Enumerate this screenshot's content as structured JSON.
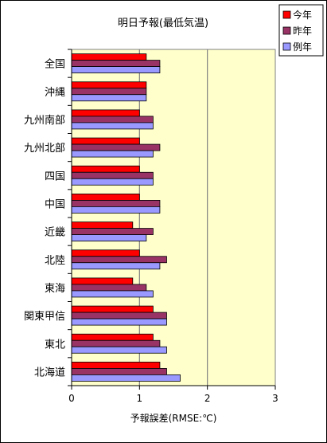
{
  "chart_data": {
    "type": "bar",
    "orientation": "horizontal",
    "title": "明日予報(最低気温)",
    "xlabel": "予報誤差(RMSE:℃)",
    "ylabel": "",
    "xlim": [
      0,
      3
    ],
    "xticks": [
      "0",
      "1",
      "2",
      "3"
    ],
    "grid": "vertical major lines",
    "legend_position": "top-right",
    "plot_background": "#FFFFCC",
    "categories": [
      "全国",
      "沖縄",
      "九州南部",
      "九州北部",
      "四国",
      "中国",
      "近畿",
      "北陸",
      "東海",
      "関東甲信",
      "東北",
      "北海道"
    ],
    "series": [
      {
        "name": "今年",
        "color": "#FF0000",
        "values": [
          1.1,
          1.1,
          1.0,
          1.0,
          1.0,
          1.0,
          0.9,
          1.0,
          0.9,
          1.2,
          1.2,
          1.3
        ]
      },
      {
        "name": "昨年",
        "color": "#993366",
        "values": [
          1.3,
          1.1,
          1.2,
          1.3,
          1.2,
          1.3,
          1.2,
          1.4,
          1.1,
          1.4,
          1.3,
          1.4
        ]
      },
      {
        "name": "例年",
        "color": "#9999FF",
        "values": [
          1.3,
          1.1,
          1.2,
          1.2,
          1.2,
          1.3,
          1.1,
          1.3,
          1.2,
          1.4,
          1.4,
          1.6
        ]
      }
    ]
  }
}
